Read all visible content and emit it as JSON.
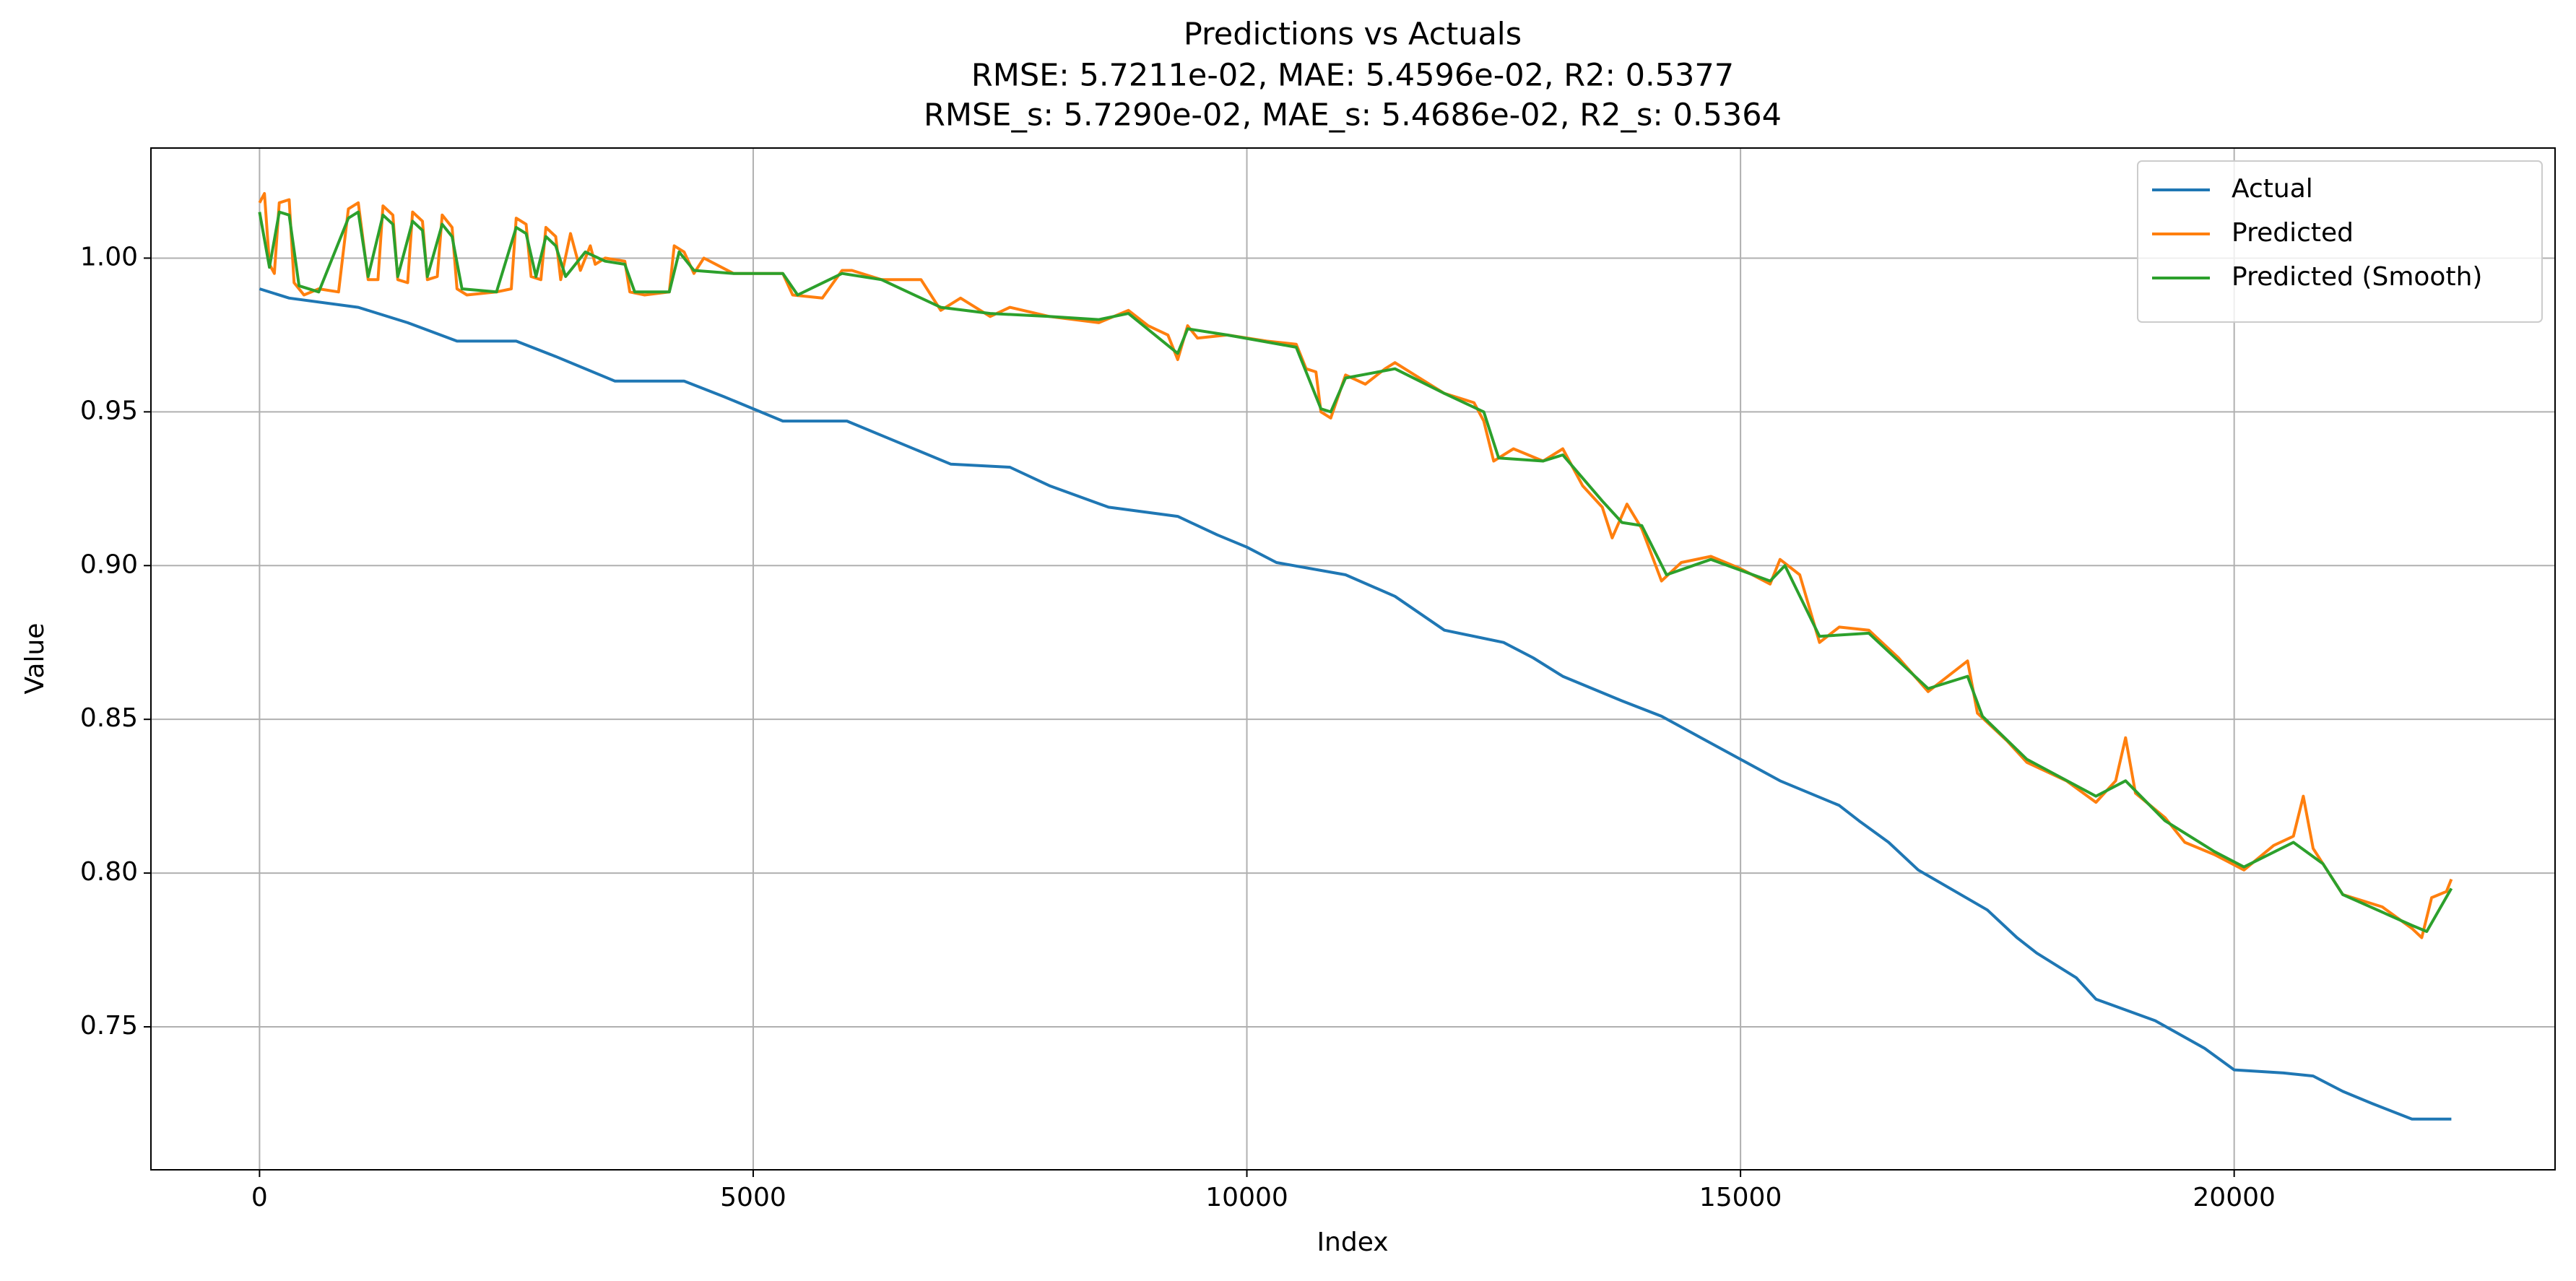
{
  "chart_data": {
    "type": "line",
    "title": "Predictions vs Actuals",
    "subtitle": [
      "RMSE: 5.7211e-02, MAE: 5.4596e-02, R2: 0.5377",
      "RMSE_s: 5.7290e-02, MAE_s: 5.4686e-02, R2_s: 0.5364"
    ],
    "xlabel": "Index",
    "ylabel": "Value",
    "xlim": [
      -1100,
      23250
    ],
    "ylim": [
      0.7035,
      1.0358
    ],
    "xticks": [
      0,
      5000,
      10000,
      15000,
      20000
    ],
    "yticks": [
      {
        "value": 0.75,
        "label": "0.75"
      },
      {
        "value": 0.8,
        "label": "0.80"
      },
      {
        "value": 0.85,
        "label": "0.85"
      },
      {
        "value": 0.9,
        "label": "0.90"
      },
      {
        "value": 0.95,
        "label": "0.95"
      },
      {
        "value": 1.0,
        "label": "1.00"
      }
    ],
    "grid": true,
    "legend": "upper right",
    "series": [
      {
        "name": "Actual",
        "color": "#1f77b4",
        "x": [
          0,
          300,
          1000,
          1500,
          2000,
          2600,
          3000,
          3600,
          4300,
          4700,
          5300,
          5950,
          6400,
          7000,
          7600,
          8000,
          8600,
          9300,
          9700,
          10000,
          10300,
          11000,
          11500,
          12000,
          12600,
          12900,
          13200,
          13800,
          14200,
          14600,
          15000,
          15400,
          16000,
          16200,
          16500,
          16800,
          17500,
          17800,
          18000,
          18400,
          18600,
          19200,
          19700,
          20000,
          20500,
          20800,
          21100,
          21400,
          21800,
          22200
        ],
        "values": [
          0.99,
          0.987,
          0.984,
          0.979,
          0.973,
          0.973,
          0.968,
          0.96,
          0.96,
          0.955,
          0.947,
          0.947,
          0.941,
          0.933,
          0.932,
          0.926,
          0.919,
          0.916,
          0.91,
          0.906,
          0.901,
          0.897,
          0.89,
          0.879,
          0.875,
          0.87,
          0.864,
          0.856,
          0.851,
          0.844,
          0.837,
          0.83,
          0.822,
          0.817,
          0.81,
          0.801,
          0.788,
          0.779,
          0.774,
          0.766,
          0.759,
          0.752,
          0.743,
          0.736,
          0.735,
          0.734,
          0.729,
          0.725,
          0.72,
          0.72
        ]
      },
      {
        "name": "Predicted",
        "color": "#ff7f0e",
        "x": [
          0,
          50,
          100,
          150,
          200,
          300,
          350,
          450,
          600,
          800,
          900,
          1000,
          1100,
          1200,
          1250,
          1350,
          1400,
          1500,
          1550,
          1650,
          1700,
          1800,
          1850,
          1950,
          2000,
          2100,
          2400,
          2550,
          2600,
          2700,
          2750,
          2850,
          2900,
          3000,
          3050,
          3150,
          3250,
          3350,
          3400,
          3500,
          3700,
          3750,
          3900,
          4150,
          4200,
          4300,
          4400,
          4500,
          4800,
          5000,
          5300,
          5400,
          5700,
          5900,
          6000,
          6300,
          6700,
          6900,
          7100,
          7400,
          7600,
          8000,
          8500,
          8800,
          9000,
          9200,
          9300,
          9400,
          9500,
          9800,
          10200,
          10500,
          10600,
          10700,
          10750,
          10850,
          11000,
          11200,
          11400,
          11500,
          11800,
          12000,
          12300,
          12400,
          12500,
          12700,
          13000,
          13200,
          13400,
          13600,
          13700,
          13850,
          14000,
          14200,
          14400,
          14700,
          15000,
          15300,
          15400,
          15600,
          15800,
          16000,
          16300,
          16600,
          16900,
          17100,
          17300,
          17400,
          17700,
          17900,
          18300,
          18600,
          18800,
          18900,
          19000,
          19300,
          19500,
          19800,
          20100,
          20400,
          20600,
          20700,
          20800,
          20900,
          21100,
          21500,
          21800,
          21900,
          22000,
          22150,
          22200
        ],
        "values": [
          1.018,
          1.021,
          0.998,
          0.995,
          1.018,
          1.019,
          0.992,
          0.988,
          0.99,
          0.989,
          1.016,
          1.018,
          0.993,
          0.993,
          1.017,
          1.014,
          0.993,
          0.992,
          1.015,
          1.012,
          0.993,
          0.994,
          1.014,
          1.01,
          0.99,
          0.988,
          0.989,
          0.99,
          1.013,
          1.011,
          0.994,
          0.993,
          1.01,
          1.007,
          0.993,
          1.008,
          0.996,
          1.004,
          0.998,
          1.0,
          0.999,
          0.989,
          0.988,
          0.989,
          1.004,
          1.002,
          0.995,
          1.0,
          0.995,
          0.995,
          0.995,
          0.988,
          0.987,
          0.996,
          0.996,
          0.993,
          0.993,
          0.983,
          0.987,
          0.981,
          0.984,
          0.981,
          0.979,
          0.983,
          0.978,
          0.975,
          0.967,
          0.978,
          0.974,
          0.975,
          0.973,
          0.972,
          0.964,
          0.963,
          0.95,
          0.948,
          0.962,
          0.959,
          0.964,
          0.966,
          0.96,
          0.956,
          0.953,
          0.947,
          0.934,
          0.938,
          0.934,
          0.938,
          0.926,
          0.919,
          0.909,
          0.92,
          0.912,
          0.895,
          0.901,
          0.903,
          0.899,
          0.894,
          0.902,
          0.897,
          0.875,
          0.88,
          0.879,
          0.87,
          0.859,
          0.864,
          0.869,
          0.852,
          0.843,
          0.836,
          0.83,
          0.823,
          0.83,
          0.844,
          0.826,
          0.818,
          0.81,
          0.806,
          0.801,
          0.809,
          0.812,
          0.825,
          0.808,
          0.803,
          0.793,
          0.789,
          0.782,
          0.779,
          0.792,
          0.794,
          0.798
        ]
      },
      {
        "name": "Predicted (Smooth)",
        "color": "#2ca02c",
        "x": [
          0,
          100,
          200,
          300,
          400,
          600,
          900,
          1000,
          1100,
          1250,
          1350,
          1400,
          1550,
          1650,
          1700,
          1850,
          1950,
          2050,
          2400,
          2600,
          2700,
          2800,
          2900,
          3000,
          3100,
          3300,
          3500,
          3700,
          3800,
          4150,
          4250,
          4400,
          4800,
          5300,
          5450,
          5900,
          6300,
          6900,
          7400,
          8000,
          8500,
          8800,
          9300,
          9400,
          9800,
          10500,
          10750,
          10850,
          11000,
          11500,
          12000,
          12400,
          12550,
          13000,
          13200,
          13600,
          13800,
          14000,
          14250,
          14700,
          15300,
          15450,
          15800,
          16300,
          16900,
          17300,
          17450,
          17900,
          18600,
          18900,
          19300,
          19800,
          20100,
          20600,
          20900,
          21100,
          21800,
          21950,
          22200
        ],
        "values": [
          1.015,
          0.997,
          1.015,
          1.014,
          0.991,
          0.989,
          1.013,
          1.015,
          0.994,
          1.014,
          1.011,
          0.994,
          1.012,
          1.009,
          0.994,
          1.011,
          1.007,
          0.99,
          0.989,
          1.01,
          1.008,
          0.994,
          1.007,
          1.004,
          0.994,
          1.002,
          0.999,
          0.998,
          0.989,
          0.989,
          1.002,
          0.996,
          0.995,
          0.995,
          0.988,
          0.995,
          0.993,
          0.984,
          0.982,
          0.981,
          0.98,
          0.982,
          0.969,
          0.977,
          0.975,
          0.971,
          0.951,
          0.95,
          0.961,
          0.964,
          0.956,
          0.95,
          0.935,
          0.934,
          0.936,
          0.921,
          0.914,
          0.913,
          0.897,
          0.902,
          0.895,
          0.9,
          0.877,
          0.878,
          0.86,
          0.864,
          0.851,
          0.837,
          0.825,
          0.83,
          0.817,
          0.807,
          0.802,
          0.81,
          0.803,
          0.793,
          0.783,
          0.781,
          0.795
        ]
      }
    ]
  }
}
